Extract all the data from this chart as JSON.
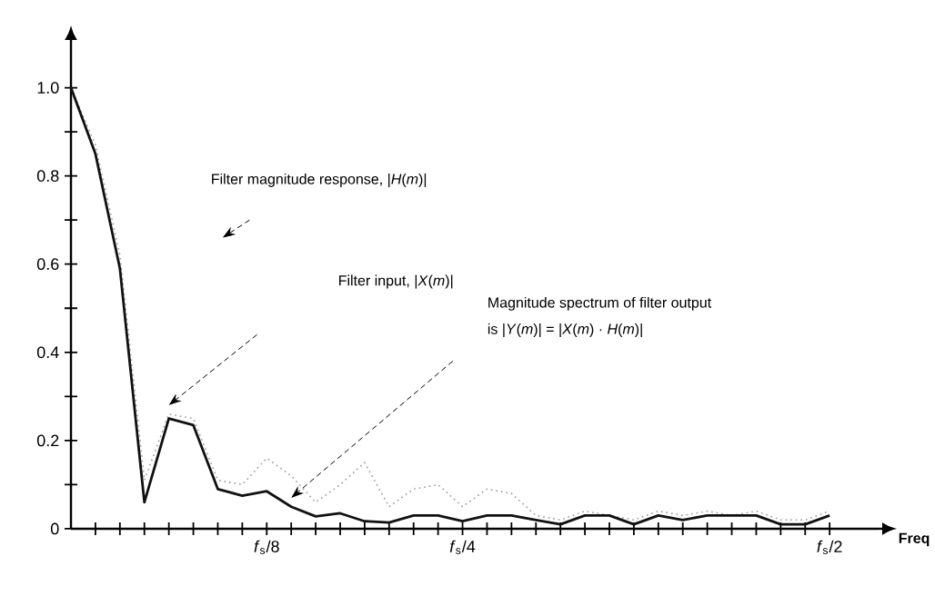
{
  "chart_data": {
    "type": "line",
    "categories": [
      null,
      null,
      null,
      null,
      null,
      null,
      null,
      null,
      "*f*$_{s}$/8",
      null,
      null,
      null,
      null,
      null,
      null,
      null,
      "*f*$_{s}$/4",
      null,
      null,
      null,
      null,
      null,
      null,
      null,
      null,
      null,
      null,
      null,
      null,
      null,
      null,
      "*f*$_{s}$/2"
    ],
    "series": [
      {
        "color": "#9a9a9a",
        "line_style": "dotted",
        "values": [
          1.0,
          0.87,
          0.62,
          0.11,
          0.26,
          0.25,
          0.11,
          0.1,
          0.16,
          0.12,
          0.06,
          0.1,
          0.15,
          0.05,
          0.09,
          0.1,
          0.05,
          0.09,
          0.08,
          0.03,
          0.02,
          0.04,
          0.03,
          0.02,
          0.04,
          0.03,
          0.04,
          0.03,
          0.04,
          0.02,
          0.02,
          0.04
        ]
      },
      {
        "color": "#111111",
        "line_style": "solid",
        "values": [
          1.0,
          0.85,
          0.59,
          0.06,
          0.25,
          0.235,
          0.09,
          0.075,
          0.085,
          0.05,
          0.028,
          0.035,
          0.017,
          0.014,
          0.03,
          0.03,
          0.017,
          0.03,
          0.03,
          0.02,
          0.01,
          0.03,
          0.03,
          0.01,
          0.03,
          0.02,
          0.03,
          0.03,
          0.03,
          0.01,
          0.01,
          0.03
        ]
      }
    ],
    "xlabel": "Freq",
    "ylim": [
      0,
      1.1
    ],
    "yticks": [
      0,
      {
        "value": 0.1,
        "label": null
      },
      {
        "value": 0.2,
        "label": "0.2"
      },
      {
        "value": 0.3,
        "label": null
      },
      {
        "value": 0.4,
        "label": "0.4"
      },
      {
        "value": 0.5,
        "label": null
      },
      {
        "value": 0.6,
        "label": "0.6"
      },
      {
        "value": 0.7,
        "label": null
      },
      {
        "value": 0.8,
        "label": "0.8"
      },
      {
        "value": 0.9,
        "label": null
      },
      {
        "value": 1.0,
        "label": "1.0"
      }
    ],
    "grid": false,
    "annotations": [
      "Filter magnitude response, |*H*(*m*)|",
      "Filter input, |*X*(*m*)|",
      "Magnitude spectrum of filter output",
      "is |*Y*(*m*)| = |*X*(*m*) · *H*(*m*)|"
    ]
  }
}
